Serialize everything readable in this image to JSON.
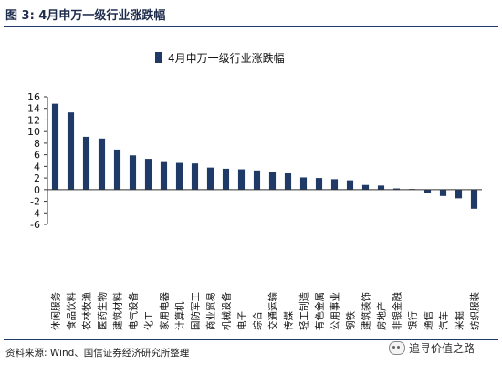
{
  "figure": {
    "title": "图 3:  4月申万一级行业涨跌幅",
    "source": "资料来源: Wind、国信证券经济研究所整理",
    "watermark": "追寻价值之路"
  },
  "colors": {
    "bar": "#1f3a66",
    "rule": "#1f3a66",
    "axis": "#333333"
  },
  "chart_data": {
    "type": "bar",
    "title": "",
    "legend": {
      "label": "4月申万一级行业涨跌幅",
      "position": "top-center"
    },
    "xlabel": "",
    "ylabel": "",
    "ylim": [
      -6,
      16
    ],
    "yticks": [
      -6,
      -4,
      -2,
      0,
      2,
      4,
      6,
      8,
      10,
      12,
      14,
      16
    ],
    "grid": false,
    "categories": [
      "休闲服务",
      "食品饮料",
      "农林牧渔",
      "医药生物",
      "建筑材料",
      "电气设备",
      "化工",
      "家用电器",
      "计算机",
      "国防军工",
      "商业贸易",
      "机械设备",
      "电子",
      "综合",
      "交通运输",
      "传媒",
      "轻工制造",
      "有色金属",
      "公用事业",
      "钢铁",
      "建筑装饰",
      "房地产",
      "非银金融",
      "银行",
      "通信",
      "汽车",
      "采掘",
      "纺织服装"
    ],
    "series": [
      {
        "values": [
          14.8,
          13.3,
          9.1,
          8.8,
          6.9,
          5.9,
          5.3,
          4.9,
          4.6,
          4.5,
          3.8,
          3.6,
          3.5,
          3.3,
          3.1,
          2.8,
          2.1,
          2.0,
          1.8,
          1.6,
          0.8,
          0.7,
          0.2,
          0.1,
          -0.5,
          -1.1,
          -1.5,
          -3.3
        ]
      }
    ]
  }
}
